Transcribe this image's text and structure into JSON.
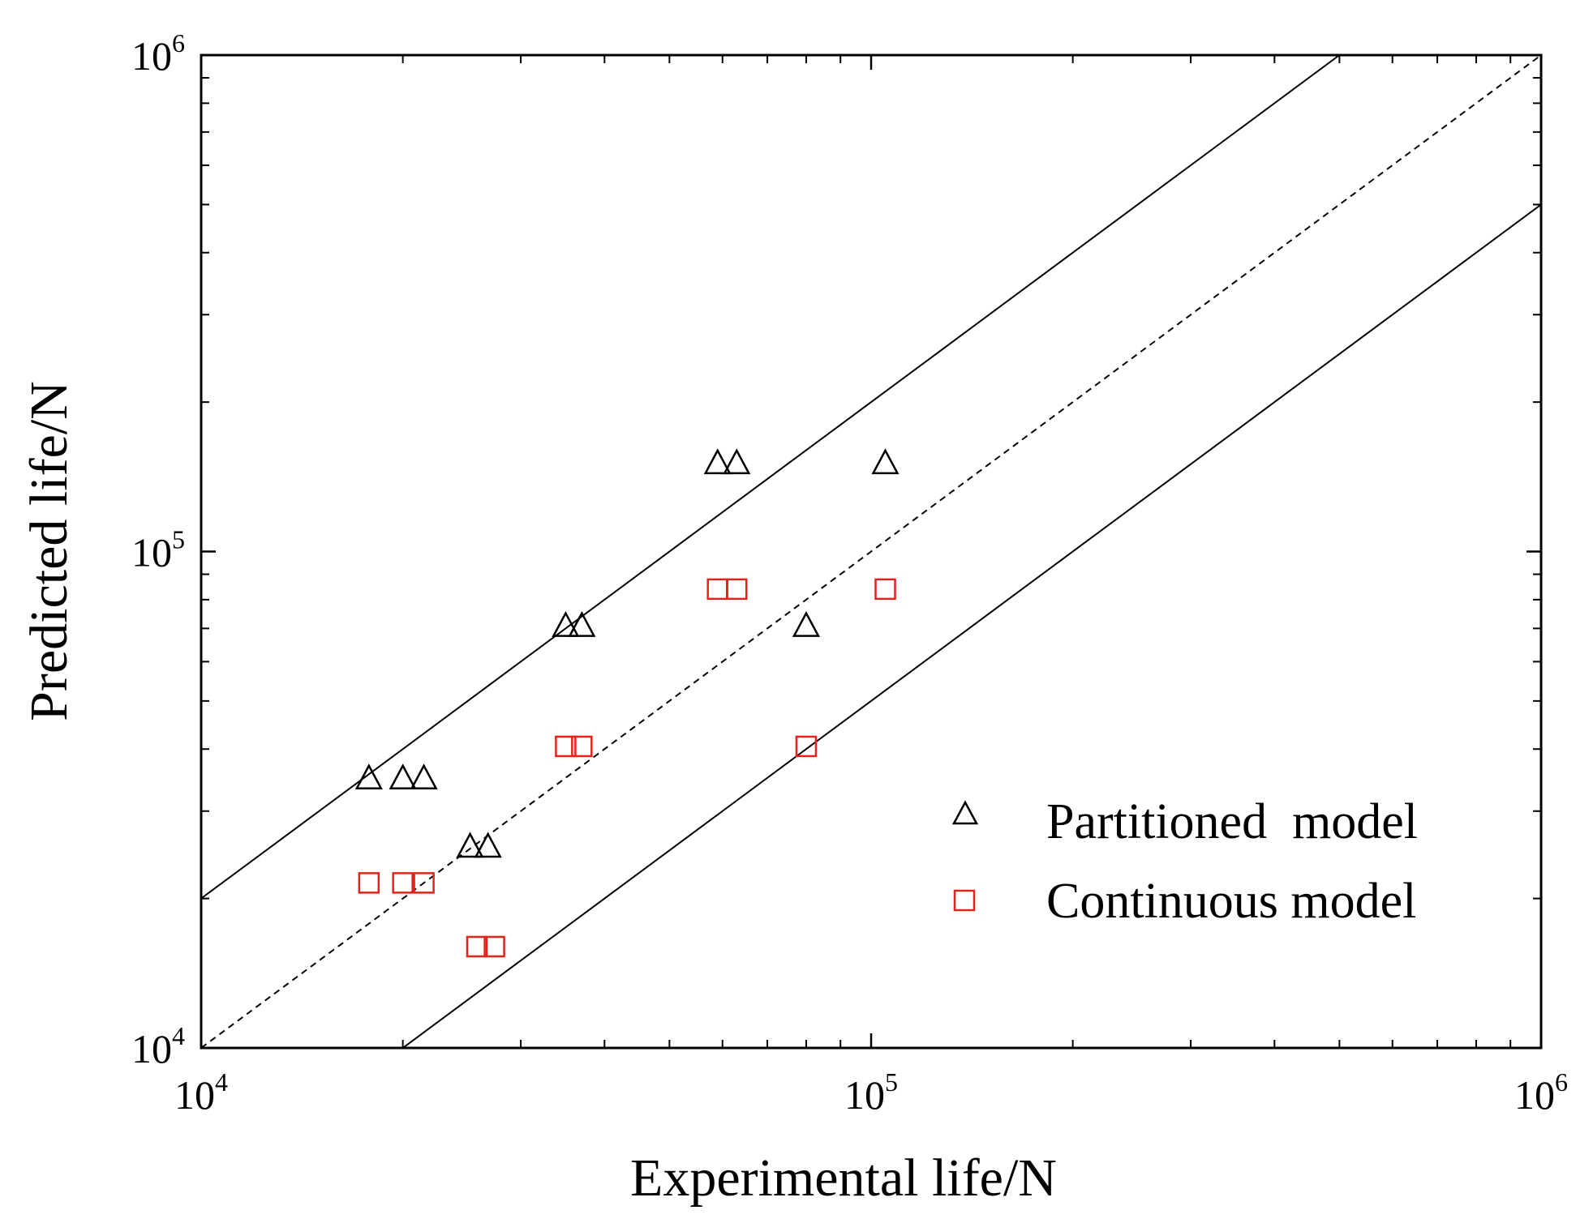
{
  "chart_data": {
    "type": "scatter",
    "xscale": "log",
    "yscale": "log",
    "xlim": [
      10000,
      1000000
    ],
    "ylim": [
      10000,
      1000000
    ],
    "xlabel": "Experimental life/N",
    "ylabel": "Predicted life/N",
    "grid": false,
    "legend_position": "bottom-right",
    "x_ticks": [
      {
        "value": 10000,
        "base": "10",
        "exp": "4"
      },
      {
        "value": 100000,
        "base": "10",
        "exp": "5"
      },
      {
        "value": 1000000,
        "base": "10",
        "exp": "6"
      }
    ],
    "y_ticks": [
      {
        "value": 10000,
        "base": "10",
        "exp": "4"
      },
      {
        "value": 100000,
        "base": "10",
        "exp": "5"
      },
      {
        "value": 1000000,
        "base": "10",
        "exp": "6"
      }
    ],
    "reference_lines": [
      {
        "name": "factor-2-upper",
        "style": "solid",
        "factor": 2
      },
      {
        "name": "equality",
        "style": "dashed",
        "factor": 1
      },
      {
        "name": "factor-2-lower",
        "style": "solid",
        "factor": 0.5
      }
    ],
    "series": [
      {
        "name": "Partitioned  model",
        "marker": "triangle",
        "color": "#000000",
        "points": [
          {
            "x": 17800,
            "y": 35000
          },
          {
            "x": 20000,
            "y": 35000
          },
          {
            "x": 21500,
            "y": 35000
          },
          {
            "x": 25200,
            "y": 25500
          },
          {
            "x": 26800,
            "y": 25500
          },
          {
            "x": 35000,
            "y": 71000
          },
          {
            "x": 37000,
            "y": 71000
          },
          {
            "x": 59000,
            "y": 151000
          },
          {
            "x": 63000,
            "y": 151000
          },
          {
            "x": 80000,
            "y": 71000
          },
          {
            "x": 105000,
            "y": 151000
          }
        ]
      },
      {
        "name": "Continuous model",
        "marker": "square",
        "color": "#e0241c",
        "points": [
          {
            "x": 17800,
            "y": 21500
          },
          {
            "x": 20000,
            "y": 21500
          },
          {
            "x": 21500,
            "y": 21500
          },
          {
            "x": 25800,
            "y": 16000
          },
          {
            "x": 27400,
            "y": 16000
          },
          {
            "x": 35000,
            "y": 40500
          },
          {
            "x": 37000,
            "y": 40500
          },
          {
            "x": 59000,
            "y": 84000
          },
          {
            "x": 63000,
            "y": 84000
          },
          {
            "x": 80000,
            "y": 40500
          },
          {
            "x": 105000,
            "y": 84000
          }
        ]
      }
    ]
  }
}
